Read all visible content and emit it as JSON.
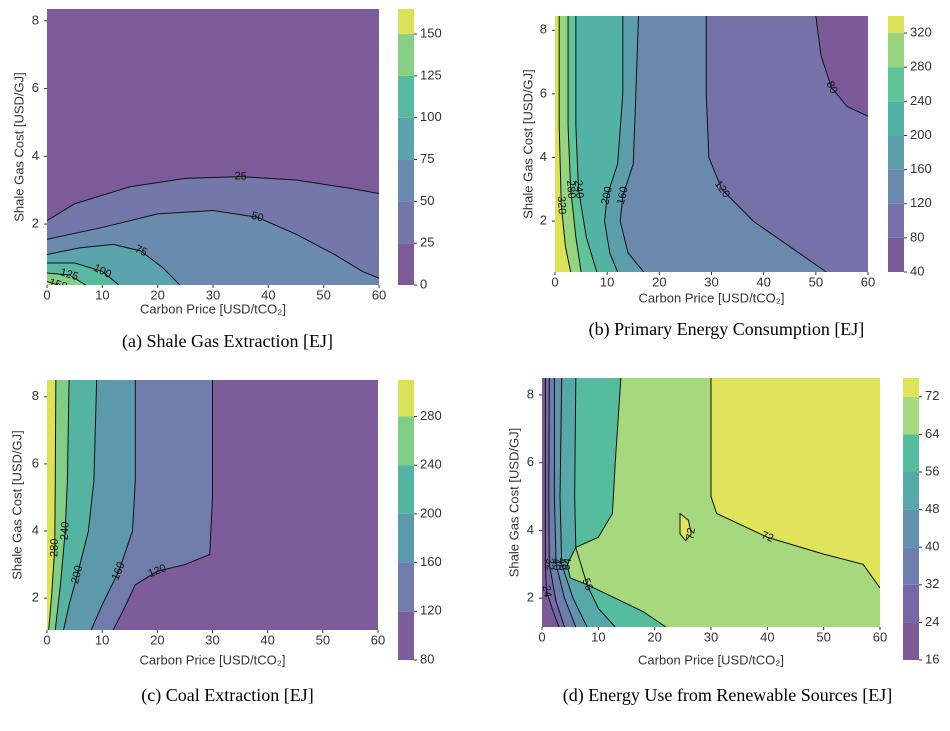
{
  "chart_data": [
    {
      "type": "contour",
      "title": "(a) Shale Gas Extraction [EJ]",
      "x_label": "Carbon Price [USD/tCO₂]",
      "y_label": "Shale Gas Cost [USD/GJ]",
      "xlim": [
        0,
        60
      ],
      "ylim": [
        0.2,
        8.35
      ],
      "xticks": [
        0,
        10,
        20,
        30,
        40,
        50,
        60
      ],
      "yticks": [
        2,
        4,
        6,
        8
      ],
      "high_side": "bottom-left",
      "levels": [
        0,
        25,
        50,
        75,
        100,
        125,
        150,
        165
      ],
      "colors": [
        "#7d5b9b",
        "#7477aa",
        "#6a8bad",
        "#5ba4ab",
        "#58b9a0",
        "#86cf84",
        "#dbe25a"
      ],
      "cticks": [
        0,
        25,
        50,
        75,
        100,
        125,
        150
      ],
      "contours": [
        {
          "level": 25,
          "x": [
            0,
            5,
            15,
            25,
            35,
            45,
            55,
            60
          ],
          "y": [
            2.1,
            2.6,
            3.1,
            3.35,
            3.4,
            3.3,
            3.05,
            2.9
          ]
        },
        {
          "level": 50,
          "x": [
            0,
            10,
            20,
            30,
            38,
            45,
            52,
            57,
            60
          ],
          "y": [
            1.55,
            1.9,
            2.3,
            2.4,
            2.2,
            1.7,
            1.1,
            0.6,
            0.4
          ]
        },
        {
          "level": 75,
          "x": [
            0,
            6,
            12,
            17,
            21,
            24
          ],
          "y": [
            1.1,
            1.3,
            1.4,
            1.2,
            0.7,
            0.2
          ]
        },
        {
          "level": 100,
          "x": [
            0,
            5,
            10,
            13
          ],
          "y": [
            0.85,
            0.85,
            0.6,
            0.2
          ]
        },
        {
          "level": 125,
          "x": [
            0,
            4,
            7
          ],
          "y": [
            0.55,
            0.5,
            0.2
          ]
        },
        {
          "level": 150,
          "x": [
            0,
            2
          ],
          "y": [
            0.3,
            0.2
          ]
        }
      ]
    },
    {
      "type": "contour",
      "title": "(b) Primary Energy Consumption [EJ]",
      "x_label": "Carbon Price [USD/tCO₂]",
      "y_label": "Shale Gas Cost [USD/GJ]",
      "xlim": [
        0,
        60
      ],
      "ylim": [
        0.4,
        8.45
      ],
      "xticks": [
        0,
        10,
        20,
        30,
        40,
        50,
        60
      ],
      "yticks": [
        2,
        4,
        6,
        8
      ],
      "high_side": "left",
      "levels": [
        40,
        80,
        120,
        160,
        200,
        240,
        280,
        320,
        340
      ],
      "colors": [
        "#7c5a9a",
        "#7472a9",
        "#6a89ad",
        "#5c9fab",
        "#52b2a3",
        "#5fc497",
        "#98d37e",
        "#dbe25a"
      ],
      "cticks": [
        40,
        80,
        120,
        160,
        200,
        240,
        280,
        320
      ],
      "contours": [
        {
          "level": 80,
          "x": [
            50,
            51,
            53,
            56,
            60
          ],
          "y": [
            8.45,
            7.2,
            6.2,
            5.6,
            5.3
          ]
        },
        {
          "level": 120,
          "x": [
            29,
            29,
            29.5,
            32,
            38,
            45,
            52
          ],
          "y": [
            8.45,
            6,
            4,
            3,
            2,
            1.2,
            0.4
          ]
        },
        {
          "level": 160,
          "x": [
            16,
            15.5,
            15,
            13,
            12.5,
            14,
            17
          ],
          "y": [
            8.45,
            6,
            3.8,
            2.8,
            2,
            1,
            0.4
          ]
        },
        {
          "level": 200,
          "x": [
            13,
            13,
            12,
            10,
            9.5,
            10.5,
            12
          ],
          "y": [
            8.45,
            6,
            3.8,
            2.8,
            2,
            1,
            0.4
          ]
        },
        {
          "level": 240,
          "x": [
            4,
            4,
            4.5,
            6,
            8
          ],
          "y": [
            8.45,
            5,
            3,
            1.5,
            0.4
          ]
        },
        {
          "level": 280,
          "x": [
            2.5,
            2.5,
            3,
            4,
            5
          ],
          "y": [
            8.45,
            5,
            3,
            1.5,
            0.4
          ]
        },
        {
          "level": 320,
          "x": [
            0.8,
            0.8,
            1.2,
            2,
            3
          ],
          "y": [
            8.45,
            5,
            2.5,
            1.2,
            0.4
          ]
        }
      ]
    },
    {
      "type": "contour",
      "title": "(c) Coal Extraction [EJ]",
      "x_label": "Carbon Price [USD/tCO₂]",
      "y_label": "Shale Gas Cost [USD/GJ]",
      "xlim": [
        0,
        60
      ],
      "ylim": [
        1.05,
        8.5
      ],
      "xticks": [
        0,
        10,
        20,
        30,
        40,
        50,
        60
      ],
      "yticks": [
        2,
        4,
        6,
        8
      ],
      "high_side": "left",
      "levels": [
        80,
        120,
        160,
        200,
        240,
        280,
        310
      ],
      "colors": [
        "#7c5c9b",
        "#707dac",
        "#5c9aab",
        "#55b3a1",
        "#82cd85",
        "#dbe25a"
      ],
      "cticks": [
        80,
        120,
        160,
        200,
        240,
        280
      ],
      "contours": [
        {
          "level": 120,
          "x": [
            30,
            30,
            29.5,
            25,
            20,
            16,
            14,
            12
          ],
          "y": [
            8.5,
            5,
            3.3,
            3.0,
            2.8,
            2.4,
            1.7,
            1.05
          ]
        },
        {
          "level": 160,
          "x": [
            16,
            16,
            15.5,
            13,
            10,
            8
          ],
          "y": [
            8.5,
            5.5,
            4,
            2.8,
            1.8,
            1.05
          ]
        },
        {
          "level": 200,
          "x": [
            9,
            8.5,
            7.5,
            5.5,
            4,
            3
          ],
          "y": [
            8.5,
            5.5,
            4,
            2.7,
            1.8,
            1.05
          ]
        },
        {
          "level": 240,
          "x": [
            4,
            3.7,
            3.3,
            2.5,
            1.5
          ],
          "y": [
            8.5,
            5.5,
            4,
            2.5,
            1.05
          ]
        },
        {
          "level": 280,
          "x": [
            1.6,
            1.5,
            1.4,
            0.8,
            0.3
          ],
          "y": [
            8.5,
            5.5,
            3.5,
            2,
            1.05
          ]
        }
      ]
    },
    {
      "type": "contour",
      "title": "(d) Energy Use from Renewable Sources [EJ]",
      "x_label": "Carbon Price [USD/tCO₂]",
      "y_label": "Shale Gas Cost [USD/GJ]",
      "xlim": [
        0,
        60
      ],
      "ylim": [
        1.15,
        8.5
      ],
      "xticks": [
        0,
        10,
        20,
        30,
        40,
        50,
        60
      ],
      "yticks": [
        2,
        4,
        6,
        8
      ],
      "high_side": "right",
      "levels": [
        16,
        24,
        32,
        40,
        48,
        56,
        64,
        72,
        76
      ],
      "colors": [
        "#7c5a9a",
        "#7668a7",
        "#6c7eac",
        "#6293ae",
        "#57a8a9",
        "#56bc9e",
        "#a6d87e",
        "#e0e45a"
      ],
      "cticks": [
        16,
        24,
        32,
        40,
        48,
        56,
        64,
        72
      ],
      "contours": [
        {
          "level": 24,
          "x": [
            0.6,
            0.6,
            0.8,
            2,
            3
          ],
          "y": [
            8.5,
            3,
            2.2,
            1.6,
            1.15
          ]
        },
        {
          "level": 32,
          "x": [
            1.3,
            1.2,
            1.3,
            2.5,
            4
          ],
          "y": [
            8.5,
            5,
            3,
            1.9,
            1.15
          ]
        },
        {
          "level": 40,
          "x": [
            2.2,
            2.2,
            2.5,
            4,
            6
          ],
          "y": [
            8.5,
            5,
            3,
            2,
            1.15
          ]
        },
        {
          "level": 48,
          "x": [
            3.5,
            3.2,
            3.5,
            5.5,
            8
          ],
          "y": [
            8.5,
            5,
            3,
            2,
            1.15
          ]
        },
        {
          "level": 56,
          "x": [
            6,
            5.8,
            6,
            8,
            10,
            13
          ],
          "y": [
            8.5,
            5,
            3.5,
            2.4,
            1.7,
            1.15
          ]
        },
        {
          "level": 64,
          "x": [
            14,
            13,
            12.5,
            10,
            6,
            4.5,
            5,
            8,
            13,
            18,
            22
          ],
          "y": [
            8.5,
            6,
            4.5,
            3.8,
            3.5,
            3,
            2.6,
            2.4,
            2,
            1.6,
            1.15
          ]
        },
        {
          "level": 72,
          "x": [
            30,
            30,
            31,
            40,
            50,
            57,
            60
          ],
          "y": [
            8.5,
            5,
            4.5,
            3.8,
            3.3,
            3,
            2.3
          ]
        },
        {
          "level": 72,
          "x": [
            24.5,
            26,
            26.5,
            25.5,
            24.5
          ],
          "y": [
            4.5,
            4.3,
            3.9,
            3.7,
            3.9
          ],
          "closed": true
        }
      ]
    }
  ]
}
